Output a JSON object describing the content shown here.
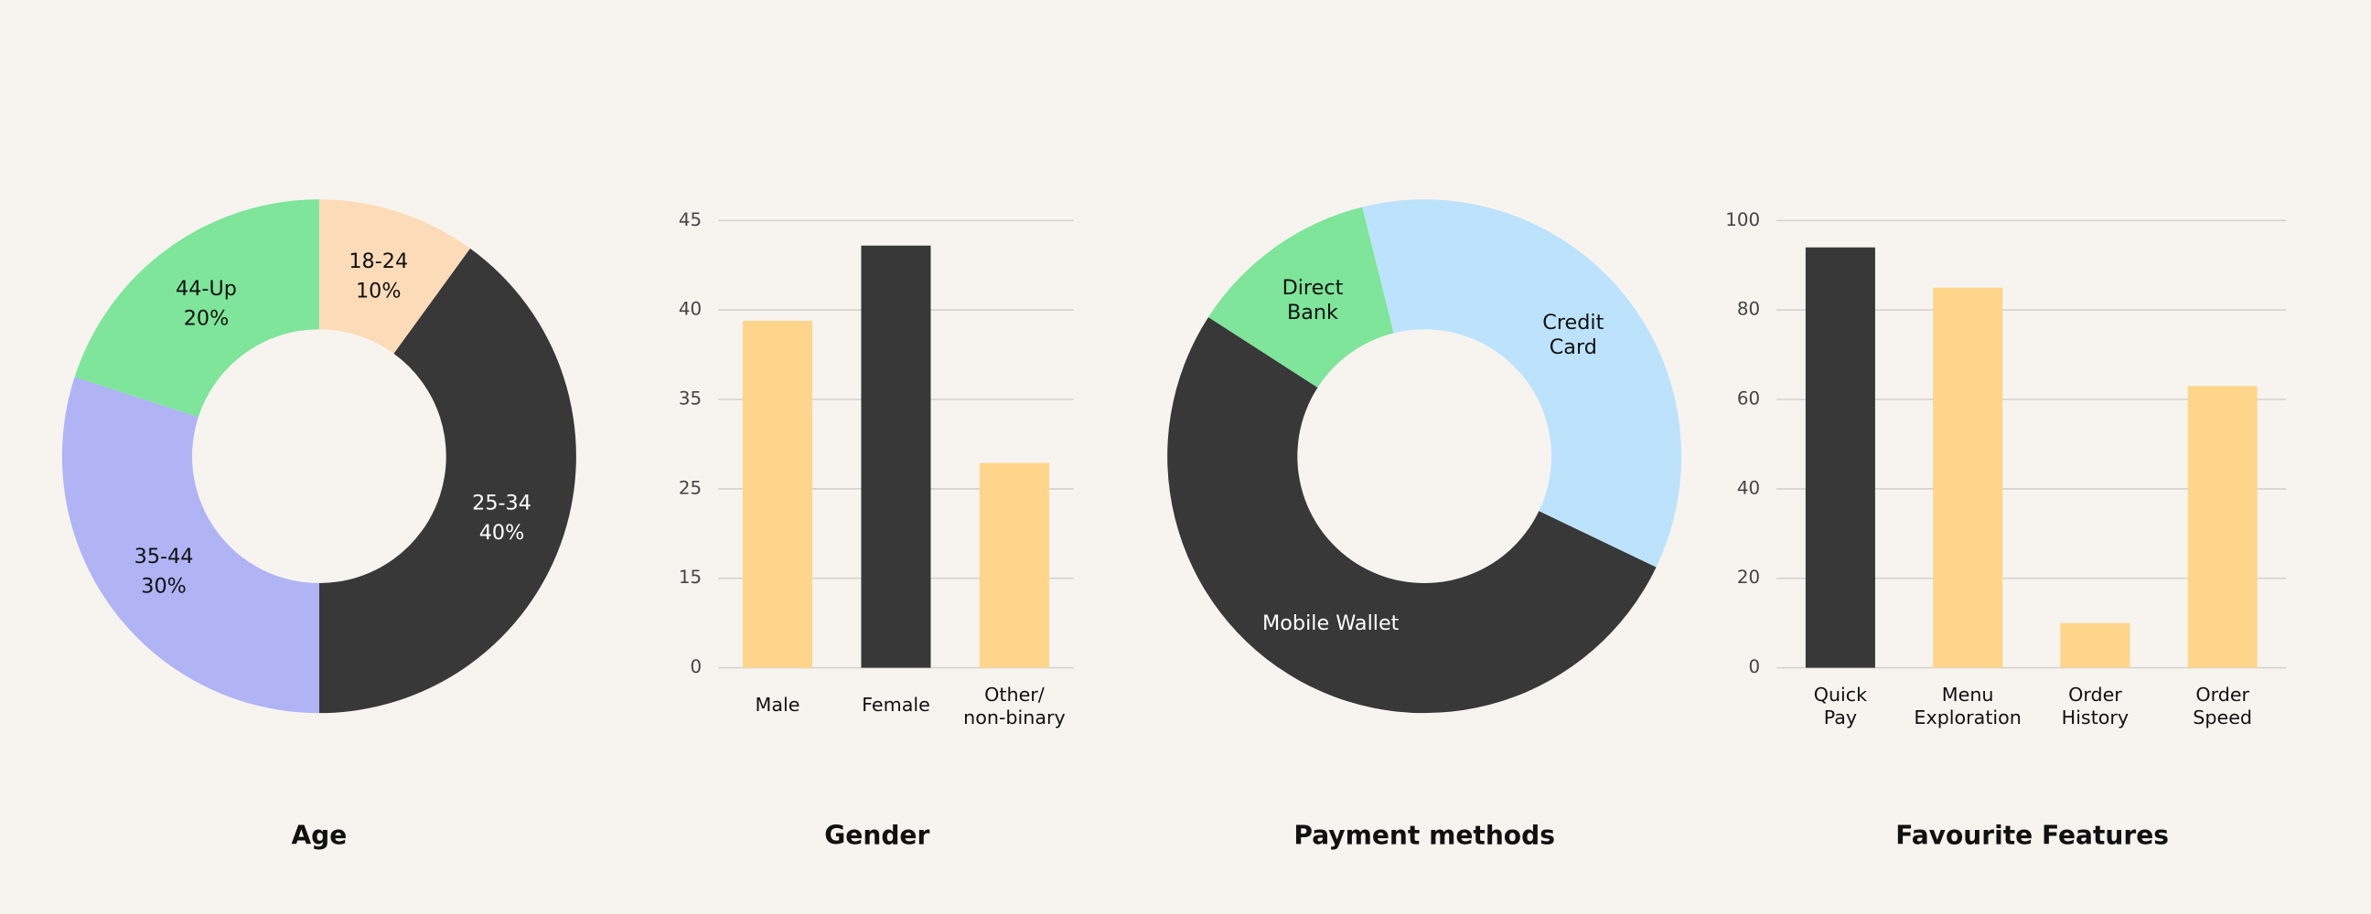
{
  "chart_data": [
    {
      "type": "donut",
      "title": "Age",
      "categories": [
        "18-24",
        "25-34",
        "35-44",
        "44-Up"
      ],
      "values": [
        10,
        40,
        30,
        20
      ],
      "value_labels": [
        "10%",
        "40%",
        "30%",
        "20%"
      ],
      "colors": [
        "#fcdcb8",
        "#383838",
        "#b0b4f5",
        "#7ee59a"
      ]
    },
    {
      "type": "bar",
      "title": "Gender",
      "categories": [
        "Male",
        "Female",
        "Other/\nnon-binary"
      ],
      "values": [
        39.4,
        43.6,
        27.9
      ],
      "colors": [
        "#fed58a",
        "#383838",
        "#fed58a"
      ],
      "ylim": [
        0,
        45
      ],
      "yticks": [
        0,
        15,
        25,
        35,
        40,
        45
      ],
      "grid": true
    },
    {
      "type": "donut",
      "title": "Payment methods",
      "categories": [
        "Credit\nCard",
        "Mobile Wallet",
        "Direct\nBank"
      ],
      "values": [
        36,
        52,
        12
      ],
      "colors": [
        "#bde3fc",
        "#383838",
        "#7ee59a"
      ]
    },
    {
      "type": "bar",
      "title": "Favourite Features",
      "categories": [
        "Quick\nPay",
        "Menu\nExploration",
        "Order\nHistory",
        "Order\nSpeed"
      ],
      "values": [
        94,
        85,
        10,
        63
      ],
      "colors": [
        "#383838",
        "#fed58a",
        "#fed58a",
        "#fed58a"
      ],
      "ylim": [
        0,
        100
      ],
      "yticks": [
        0,
        20,
        40,
        60,
        80,
        100
      ],
      "grid": true
    }
  ]
}
